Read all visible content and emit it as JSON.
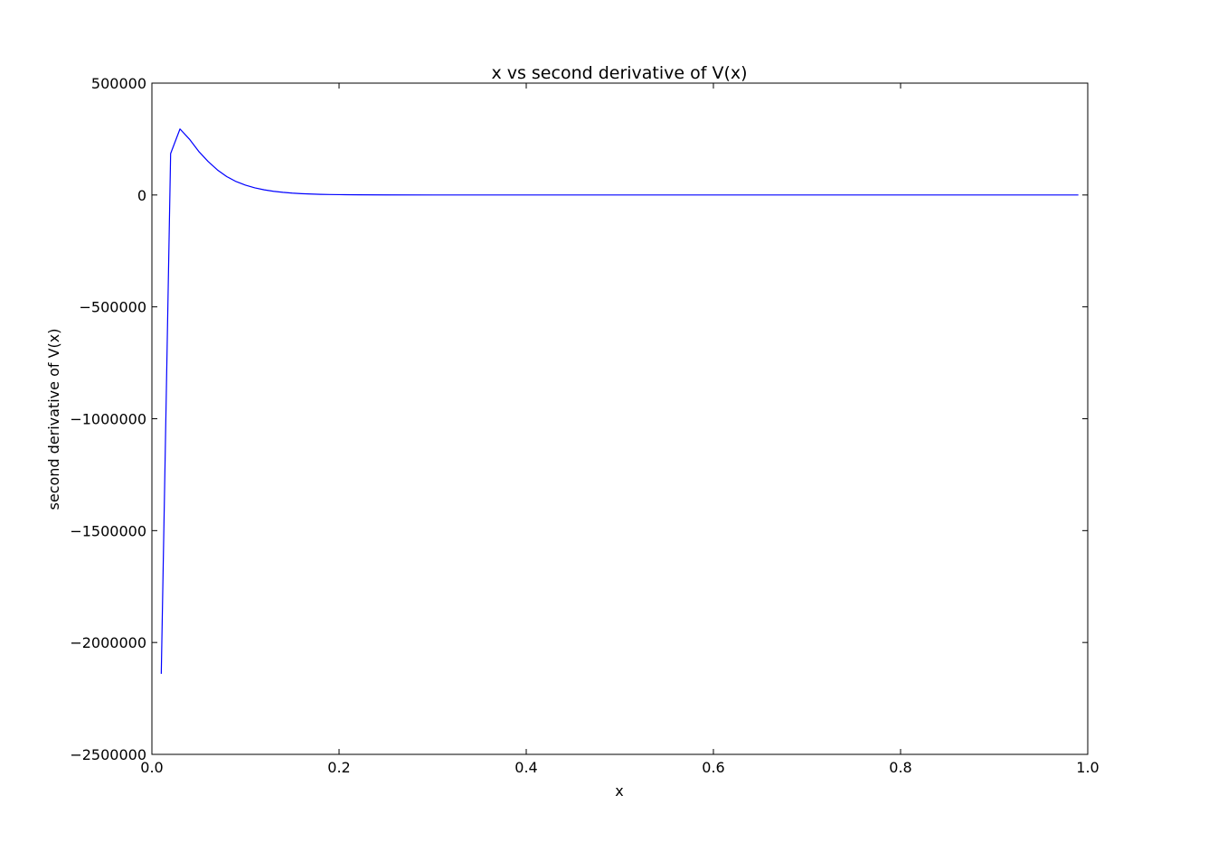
{
  "chart_data": {
    "type": "line",
    "title": "x vs second derivative of V(x)",
    "xlabel": "x",
    "ylabel": "second derivative of V(x)",
    "xlim": [
      0.0,
      1.0
    ],
    "ylim": [
      -2500000,
      500000
    ],
    "x_ticks": [
      {
        "value": 0.0,
        "label": "0.0"
      },
      {
        "value": 0.2,
        "label": "0.2"
      },
      {
        "value": 0.4,
        "label": "0.4"
      },
      {
        "value": 0.6,
        "label": "0.6"
      },
      {
        "value": 0.8,
        "label": "0.8"
      },
      {
        "value": 1.0,
        "label": "1.0"
      }
    ],
    "y_ticks": [
      {
        "value": 500000,
        "label": "500000"
      },
      {
        "value": 0,
        "label": "0"
      },
      {
        "value": -500000,
        "label": "−500000"
      },
      {
        "value": -1000000,
        "label": "−1000000"
      },
      {
        "value": -1500000,
        "label": "−1500000"
      },
      {
        "value": -2000000,
        "label": "−2000000"
      },
      {
        "value": -2500000,
        "label": "−2500000"
      }
    ],
    "grid": false,
    "line_color": "#0000ff",
    "series": [
      {
        "x": [
          0.01,
          0.02,
          0.03,
          0.04,
          0.05,
          0.06,
          0.07,
          0.08,
          0.09,
          0.1,
          0.11,
          0.12,
          0.13,
          0.14,
          0.15,
          0.16,
          0.17,
          0.18,
          0.19,
          0.2,
          0.22,
          0.25,
          0.3,
          0.4,
          0.5,
          0.6,
          0.7,
          0.8,
          0.9,
          0.99
        ],
        "y": [
          -2140000,
          185000,
          295000,
          250000,
          195000,
          150000,
          112000,
          82000,
          60000,
          44000,
          32000,
          23000,
          16500,
          12000,
          8500,
          6000,
          4300,
          3000,
          2100,
          1500,
          800,
          300,
          80,
          10,
          2,
          0,
          0,
          0,
          0,
          0
        ]
      }
    ]
  }
}
